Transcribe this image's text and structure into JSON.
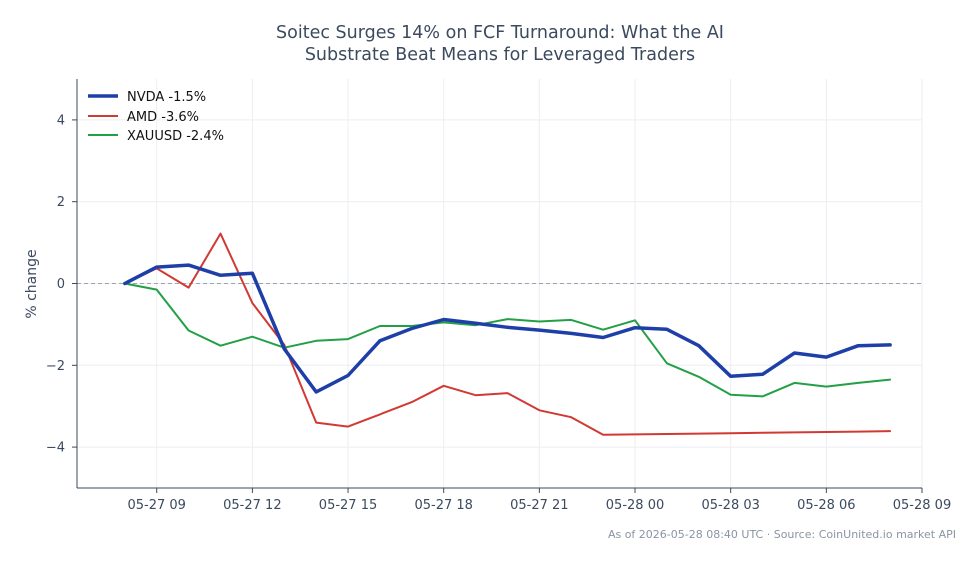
{
  "chart_data": {
    "type": "line",
    "title_lines": [
      "Soitec Surges 14% on FCF Turnaround: What the AI",
      "Substrate Beat Means for Leveraged Traders"
    ],
    "ylabel": "% change",
    "xlabel": "",
    "xlim": [
      "2026-05-27T06:30",
      "2026-05-28T09:00"
    ],
    "ylim": [
      -5,
      5
    ],
    "x_ticks": [
      {
        "t": "2026-05-27T09:00",
        "label": "05-27 09"
      },
      {
        "t": "2026-05-27T12:00",
        "label": "05-27 12"
      },
      {
        "t": "2026-05-27T15:00",
        "label": "05-27 15"
      },
      {
        "t": "2026-05-27T18:00",
        "label": "05-27 18"
      },
      {
        "t": "2026-05-27T21:00",
        "label": "05-27 21"
      },
      {
        "t": "2026-05-28T00:00",
        "label": "05-28 00"
      },
      {
        "t": "2026-05-28T03:00",
        "label": "05-28 03"
      },
      {
        "t": "2026-05-28T06:00",
        "label": "05-28 06"
      },
      {
        "t": "2026-05-28T09:00",
        "label": "05-28 09"
      }
    ],
    "y_ticks": [
      {
        "v": 4,
        "label": "4"
      },
      {
        "v": 2,
        "label": "2"
      },
      {
        "v": 0,
        "label": "0"
      },
      {
        "v": -2,
        "label": "−2"
      },
      {
        "v": -4,
        "label": "−4"
      }
    ],
    "grid": true,
    "zero_line": true,
    "legend_position": "top-left",
    "x": [
      "2026-05-27T08:00",
      "2026-05-27T09:00",
      "2026-05-27T10:00",
      "2026-05-27T11:00",
      "2026-05-27T12:00",
      "2026-05-27T13:00",
      "2026-05-27T14:00",
      "2026-05-27T15:00",
      "2026-05-27T16:00",
      "2026-05-27T17:00",
      "2026-05-27T18:00",
      "2026-05-27T19:00",
      "2026-05-27T20:00",
      "2026-05-27T21:00",
      "2026-05-27T22:00",
      "2026-05-27T23:00",
      "2026-05-28T00:00",
      "2026-05-28T01:00",
      "2026-05-28T02:00",
      "2026-05-28T03:00",
      "2026-05-28T04:00",
      "2026-05-28T05:00",
      "2026-05-28T06:00",
      "2026-05-28T07:00",
      "2026-05-28T08:00"
    ],
    "series": [
      {
        "name": "NVDA -1.5%",
        "color": "#1f3fa8",
        "values": [
          0.0,
          0.4,
          0.45,
          0.2,
          0.25,
          -1.6,
          -2.65,
          -2.25,
          -1.4,
          -1.1,
          -0.88,
          -0.97,
          -1.07,
          -1.14,
          -1.22,
          -1.32,
          -1.08,
          -1.12,
          -1.52,
          -2.27,
          -2.22,
          -1.7,
          -1.8,
          -1.52,
          -1.5
        ]
      },
      {
        "name": "AMD -3.6%",
        "color": "#d03a32",
        "values": [
          0.0,
          0.37,
          -0.1,
          1.22,
          -0.48,
          -1.5,
          -3.4,
          -3.5,
          -3.2,
          -2.9,
          -2.5,
          -2.73,
          -2.68,
          -3.1,
          -3.27,
          -3.7,
          -3.69,
          -3.68,
          -3.67,
          -3.66,
          -3.65,
          -3.64,
          -3.63,
          -3.62,
          -3.61
        ]
      },
      {
        "name": "XAUUSD -2.4%",
        "color": "#22a046",
        "values": [
          0.0,
          -0.15,
          -1.15,
          -1.52,
          -1.3,
          -1.57,
          -1.4,
          -1.36,
          -1.04,
          -1.04,
          -0.95,
          -1.02,
          -0.87,
          -0.93,
          -0.89,
          -1.13,
          -0.9,
          -1.95,
          -2.28,
          -2.72,
          -2.76,
          -2.43,
          -2.52,
          -2.43,
          -2.35
        ]
      }
    ],
    "footer": "As of 2026-05-28 08:40 UTC · Source: CoinUnited.io market API"
  }
}
